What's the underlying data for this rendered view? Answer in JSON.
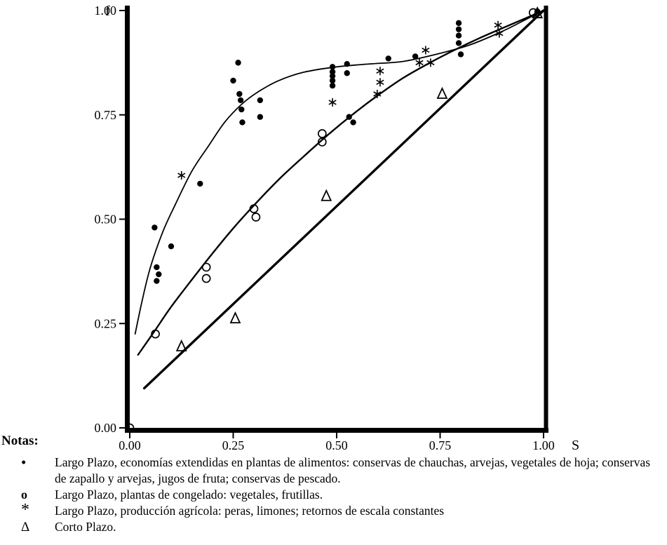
{
  "chart_data": {
    "type": "scatter",
    "title": "",
    "xlabel": "S",
    "ylabel": "f",
    "xlim": [
      0,
      1
    ],
    "ylim": [
      0,
      1
    ],
    "grid": false,
    "xticks": [
      0,
      0.25,
      0.5,
      0.75,
      1
    ],
    "xtick_labels": [
      "0.00",
      "0.25",
      "0.50",
      "0.75",
      "1.00"
    ],
    "yticks": [
      0,
      0.25,
      0.5,
      0.75,
      1
    ],
    "ytick_labels": [
      "0.00",
      "0.25",
      "0.50",
      "0.75",
      "1.00"
    ],
    "series": [
      {
        "name": "largo-plazo-alimentos",
        "marker": "dot",
        "points": [
          [
            0.06,
            0.48
          ],
          [
            0.1,
            0.435
          ],
          [
            0.065,
            0.385
          ],
          [
            0.07,
            0.368
          ],
          [
            0.065,
            0.352
          ],
          [
            0.17,
            0.585
          ],
          [
            0.25,
            0.832
          ],
          [
            0.262,
            0.875
          ],
          [
            0.265,
            0.8
          ],
          [
            0.268,
            0.785
          ],
          [
            0.27,
            0.763
          ],
          [
            0.272,
            0.732
          ],
          [
            0.315,
            0.785
          ],
          [
            0.315,
            0.745
          ],
          [
            0.49,
            0.865
          ],
          [
            0.49,
            0.853
          ],
          [
            0.49,
            0.843
          ],
          [
            0.49,
            0.832
          ],
          [
            0.49,
            0.82
          ],
          [
            0.525,
            0.872
          ],
          [
            0.525,
            0.85
          ],
          [
            0.53,
            0.745
          ],
          [
            0.54,
            0.732
          ],
          [
            0.625,
            0.885
          ],
          [
            0.69,
            0.89
          ],
          [
            0.795,
            0.97
          ],
          [
            0.795,
            0.955
          ],
          [
            0.795,
            0.94
          ],
          [
            0.795,
            0.922
          ],
          [
            0.8,
            0.895
          ],
          [
            0.985,
            0.998
          ]
        ]
      },
      {
        "name": "largo-plazo-congelado",
        "marker": "circle",
        "points": [
          [
            0.0,
            0.0
          ],
          [
            0.062,
            0.225
          ],
          [
            0.185,
            0.385
          ],
          [
            0.185,
            0.358
          ],
          [
            0.3,
            0.525
          ],
          [
            0.305,
            0.505
          ],
          [
            0.465,
            0.705
          ],
          [
            0.465,
            0.685
          ],
          [
            0.975,
            0.995
          ]
        ]
      },
      {
        "name": "largo-plazo-agricola",
        "marker": "asterisk",
        "points": [
          [
            0.125,
            0.605
          ],
          [
            0.49,
            0.78
          ],
          [
            0.605,
            0.855
          ],
          [
            0.605,
            0.828
          ],
          [
            0.598,
            0.8
          ],
          [
            0.715,
            0.905
          ],
          [
            0.7,
            0.875
          ],
          [
            0.727,
            0.875
          ],
          [
            0.89,
            0.965
          ],
          [
            0.893,
            0.945
          ]
        ]
      },
      {
        "name": "corto-plazo",
        "marker": "triangle",
        "points": [
          [
            0.125,
            0.195
          ],
          [
            0.255,
            0.262
          ],
          [
            0.475,
            0.555
          ],
          [
            0.755,
            0.8
          ],
          [
            0.985,
            0.993
          ]
        ]
      }
    ],
    "curves": [
      {
        "name": "upper-long-run-curve",
        "smooth": true,
        "width": 1.8,
        "points": [
          [
            0.013,
            0.225
          ],
          [
            0.03,
            0.305
          ],
          [
            0.05,
            0.385
          ],
          [
            0.08,
            0.47
          ],
          [
            0.11,
            0.535
          ],
          [
            0.15,
            0.615
          ],
          [
            0.19,
            0.675
          ],
          [
            0.23,
            0.733
          ],
          [
            0.27,
            0.775
          ],
          [
            0.31,
            0.805
          ],
          [
            0.36,
            0.832
          ],
          [
            0.42,
            0.852
          ],
          [
            0.5,
            0.865
          ],
          [
            0.58,
            0.872
          ],
          [
            0.66,
            0.878
          ],
          [
            0.74,
            0.895
          ],
          [
            0.82,
            0.917
          ],
          [
            0.9,
            0.95
          ],
          [
            0.96,
            0.98
          ],
          [
            1.0,
            1.0
          ]
        ]
      },
      {
        "name": "middle-long-run-curve",
        "smooth": true,
        "width": 2.4,
        "points": [
          [
            0.02,
            0.175
          ],
          [
            0.06,
            0.232
          ],
          [
            0.1,
            0.29
          ],
          [
            0.15,
            0.355
          ],
          [
            0.2,
            0.418
          ],
          [
            0.25,
            0.478
          ],
          [
            0.3,
            0.533
          ],
          [
            0.36,
            0.595
          ],
          [
            0.42,
            0.65
          ],
          [
            0.48,
            0.703
          ],
          [
            0.54,
            0.752
          ],
          [
            0.6,
            0.797
          ],
          [
            0.66,
            0.838
          ],
          [
            0.72,
            0.872
          ],
          [
            0.78,
            0.903
          ],
          [
            0.85,
            0.936
          ],
          [
            0.92,
            0.966
          ],
          [
            1.0,
            1.0
          ]
        ]
      },
      {
        "name": "short-run-line",
        "smooth": false,
        "width": 3.4,
        "points": [
          [
            0.035,
            0.095
          ],
          [
            1.0,
            1.0
          ]
        ]
      }
    ],
    "ink_color": "#000000"
  },
  "notes": {
    "label": "Notas:",
    "items": [
      {
        "symbol": "•",
        "text": "Largo Plazo, economías extendidas en plantas de alimentos: conservas de chauchas, arvejas, vegetales de hoja; conservas de zapallo y arvejas, jugos de fruta; conservas de pescado."
      },
      {
        "symbol": "o",
        "text": "Largo Plazo, plantas de congelado: vegetales, frutillas."
      },
      {
        "symbol": "*",
        "text": "Largo Plazo, producción agrícola: peras, limones; retornos de escala constantes"
      },
      {
        "symbol": "Δ",
        "text": "Corto Plazo."
      }
    ]
  }
}
